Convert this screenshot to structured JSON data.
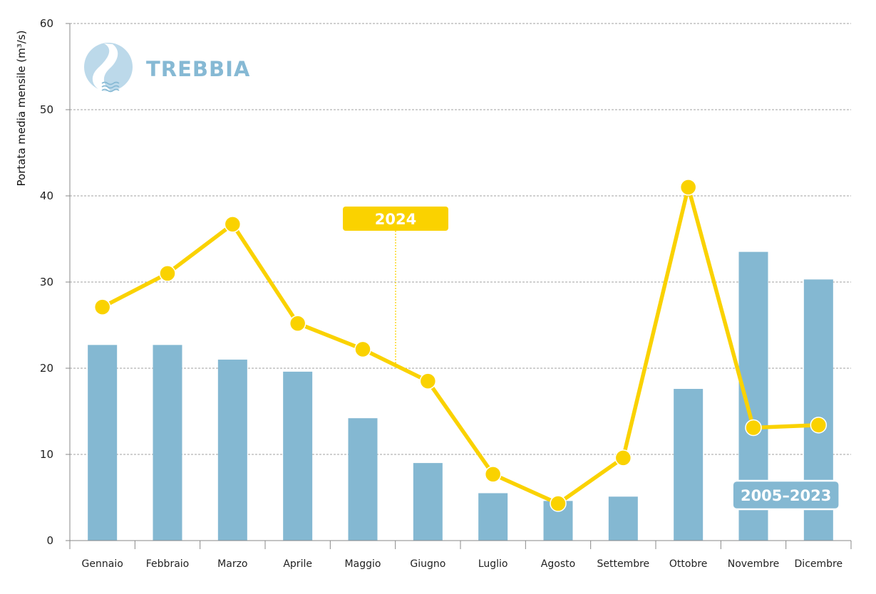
{
  "chart_data": {
    "type": "bar",
    "river_name": "TREBBIA",
    "ylabel": "Portata media mensile (m³/s)",
    "ylim": [
      0,
      60
    ],
    "yticks": [
      0,
      10,
      20,
      30,
      40,
      50,
      60
    ],
    "grid": true,
    "categories": [
      "Gennaio",
      "Febbraio",
      "Marzo",
      "Aprile",
      "Maggio",
      "Giugno",
      "Luglio",
      "Agosto",
      "Settembre",
      "Ottobre",
      "Novembre",
      "Dicembre"
    ],
    "series": [
      {
        "name": "2005–2023",
        "type": "bar",
        "color": "#84b8d2",
        "values": [
          22.7,
          22.7,
          21.0,
          19.6,
          14.2,
          9.0,
          5.5,
          4.6,
          5.1,
          17.6,
          33.5,
          30.3
        ]
      },
      {
        "name": "2024",
        "type": "line",
        "color": "#fad200",
        "values": [
          27.1,
          31.0,
          36.7,
          25.2,
          22.2,
          18.5,
          7.7,
          4.3,
          9.6,
          41.0,
          13.1,
          13.4
        ]
      }
    ]
  }
}
